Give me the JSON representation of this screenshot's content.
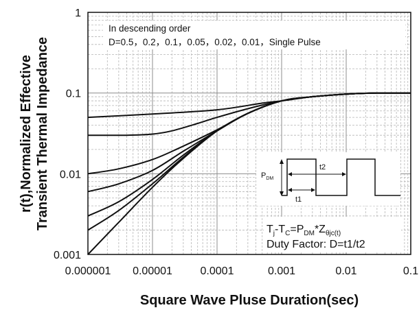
{
  "chart_data": {
    "type": "line",
    "xlabel": "Square Wave Pluse Duration(sec)",
    "ylabel_line1": "r(t),Normalized Effective",
    "ylabel_line2": "Transient Thermal Impedance",
    "x_scale": "log",
    "y_scale": "log",
    "xlim": [
      1e-06,
      0.1
    ],
    "ylim": [
      0.001,
      1
    ],
    "grid": true,
    "x_ticks": [
      {
        "value": 1e-06,
        "label": "0.000001"
      },
      {
        "value": 1e-05,
        "label": "0.00001"
      },
      {
        "value": 0.0001,
        "label": "0.0001"
      },
      {
        "value": 0.001,
        "label": "0.001"
      },
      {
        "value": 0.01,
        "label": "0.01"
      },
      {
        "value": 0.1,
        "label": "0.1"
      }
    ],
    "y_ticks": [
      {
        "value": 1,
        "label": "1"
      },
      {
        "value": 0.1,
        "label": "0.1"
      },
      {
        "value": 0.01,
        "label": "0.01"
      },
      {
        "value": 0.001,
        "label": "0.001"
      }
    ],
    "annotations": {
      "order_line1": "In descending order",
      "order_line2": "D=0.5，0.2，0.1，0.05，0.02，0.01，Single Pulse",
      "formula_Tj": "T",
      "formula_j": "j",
      "formula_minus": "-T",
      "formula_C": "C",
      "formula_eq": "=P",
      "formula_DM": "DM",
      "formula_star": "*Z",
      "formula_theta": "θjc(t)",
      "duty": "Duty Factor: D=t1/t2",
      "pdm_P": "P",
      "pdm_DM": "DM",
      "t1": "t1",
      "t2": "t2"
    },
    "series": [
      {
        "name": "D=0.5",
        "x": [
          1e-06,
          1e-05,
          0.0001,
          0.0005,
          0.001,
          0.003,
          0.01,
          0.03,
          0.1
        ],
        "y": [
          0.05,
          0.055,
          0.062,
          0.075,
          0.08,
          0.09,
          0.097,
          0.1,
          0.1
        ]
      },
      {
        "name": "D=0.2",
        "x": [
          1e-06,
          4e-06,
          1e-05,
          2e-05,
          5e-05,
          0.0001,
          0.0003,
          0.001,
          0.003,
          0.01,
          0.03,
          0.1
        ],
        "y": [
          0.03,
          0.03,
          0.031,
          0.034,
          0.042,
          0.05,
          0.064,
          0.08,
          0.09,
          0.097,
          0.1,
          0.1
        ]
      },
      {
        "name": "D=0.1",
        "x": [
          1e-06,
          3e-06,
          1e-05,
          3e-05,
          0.0001,
          0.0003,
          0.001,
          0.003,
          0.01,
          0.03,
          0.1
        ],
        "y": [
          0.01,
          0.0115,
          0.015,
          0.022,
          0.035,
          0.056,
          0.08,
          0.09,
          0.097,
          0.1,
          0.1
        ]
      },
      {
        "name": "D=0.05",
        "x": [
          1e-06,
          3e-06,
          1e-05,
          3e-05,
          0.0001,
          0.0003,
          0.001,
          0.003,
          0.01,
          0.03,
          0.1
        ],
        "y": [
          0.006,
          0.0075,
          0.011,
          0.019,
          0.034,
          0.056,
          0.08,
          0.09,
          0.097,
          0.1,
          0.1
        ]
      },
      {
        "name": "D=0.02",
        "x": [
          1e-06,
          3e-06,
          1e-05,
          3e-05,
          0.0001,
          0.0003,
          0.001,
          0.003,
          0.01,
          0.03,
          0.1
        ],
        "y": [
          0.003,
          0.0045,
          0.0085,
          0.017,
          0.034,
          0.056,
          0.08,
          0.09,
          0.097,
          0.1,
          0.1
        ]
      },
      {
        "name": "D=0.01",
        "x": [
          1e-06,
          3e-06,
          1e-05,
          3e-05,
          0.0001,
          0.0003,
          0.001,
          0.003,
          0.01,
          0.03,
          0.1
        ],
        "y": [
          0.002,
          0.0035,
          0.0075,
          0.016,
          0.034,
          0.056,
          0.08,
          0.09,
          0.097,
          0.1,
          0.1
        ]
      },
      {
        "name": "Single Pulse",
        "x": [
          1e-06,
          3e-06,
          1e-05,
          3e-05,
          0.0001,
          0.0003,
          0.001,
          0.003,
          0.01,
          0.03,
          0.1
        ],
        "y": [
          0.001,
          0.0025,
          0.0068,
          0.0155,
          0.034,
          0.056,
          0.08,
          0.09,
          0.097,
          0.1,
          0.1
        ]
      }
    ]
  }
}
